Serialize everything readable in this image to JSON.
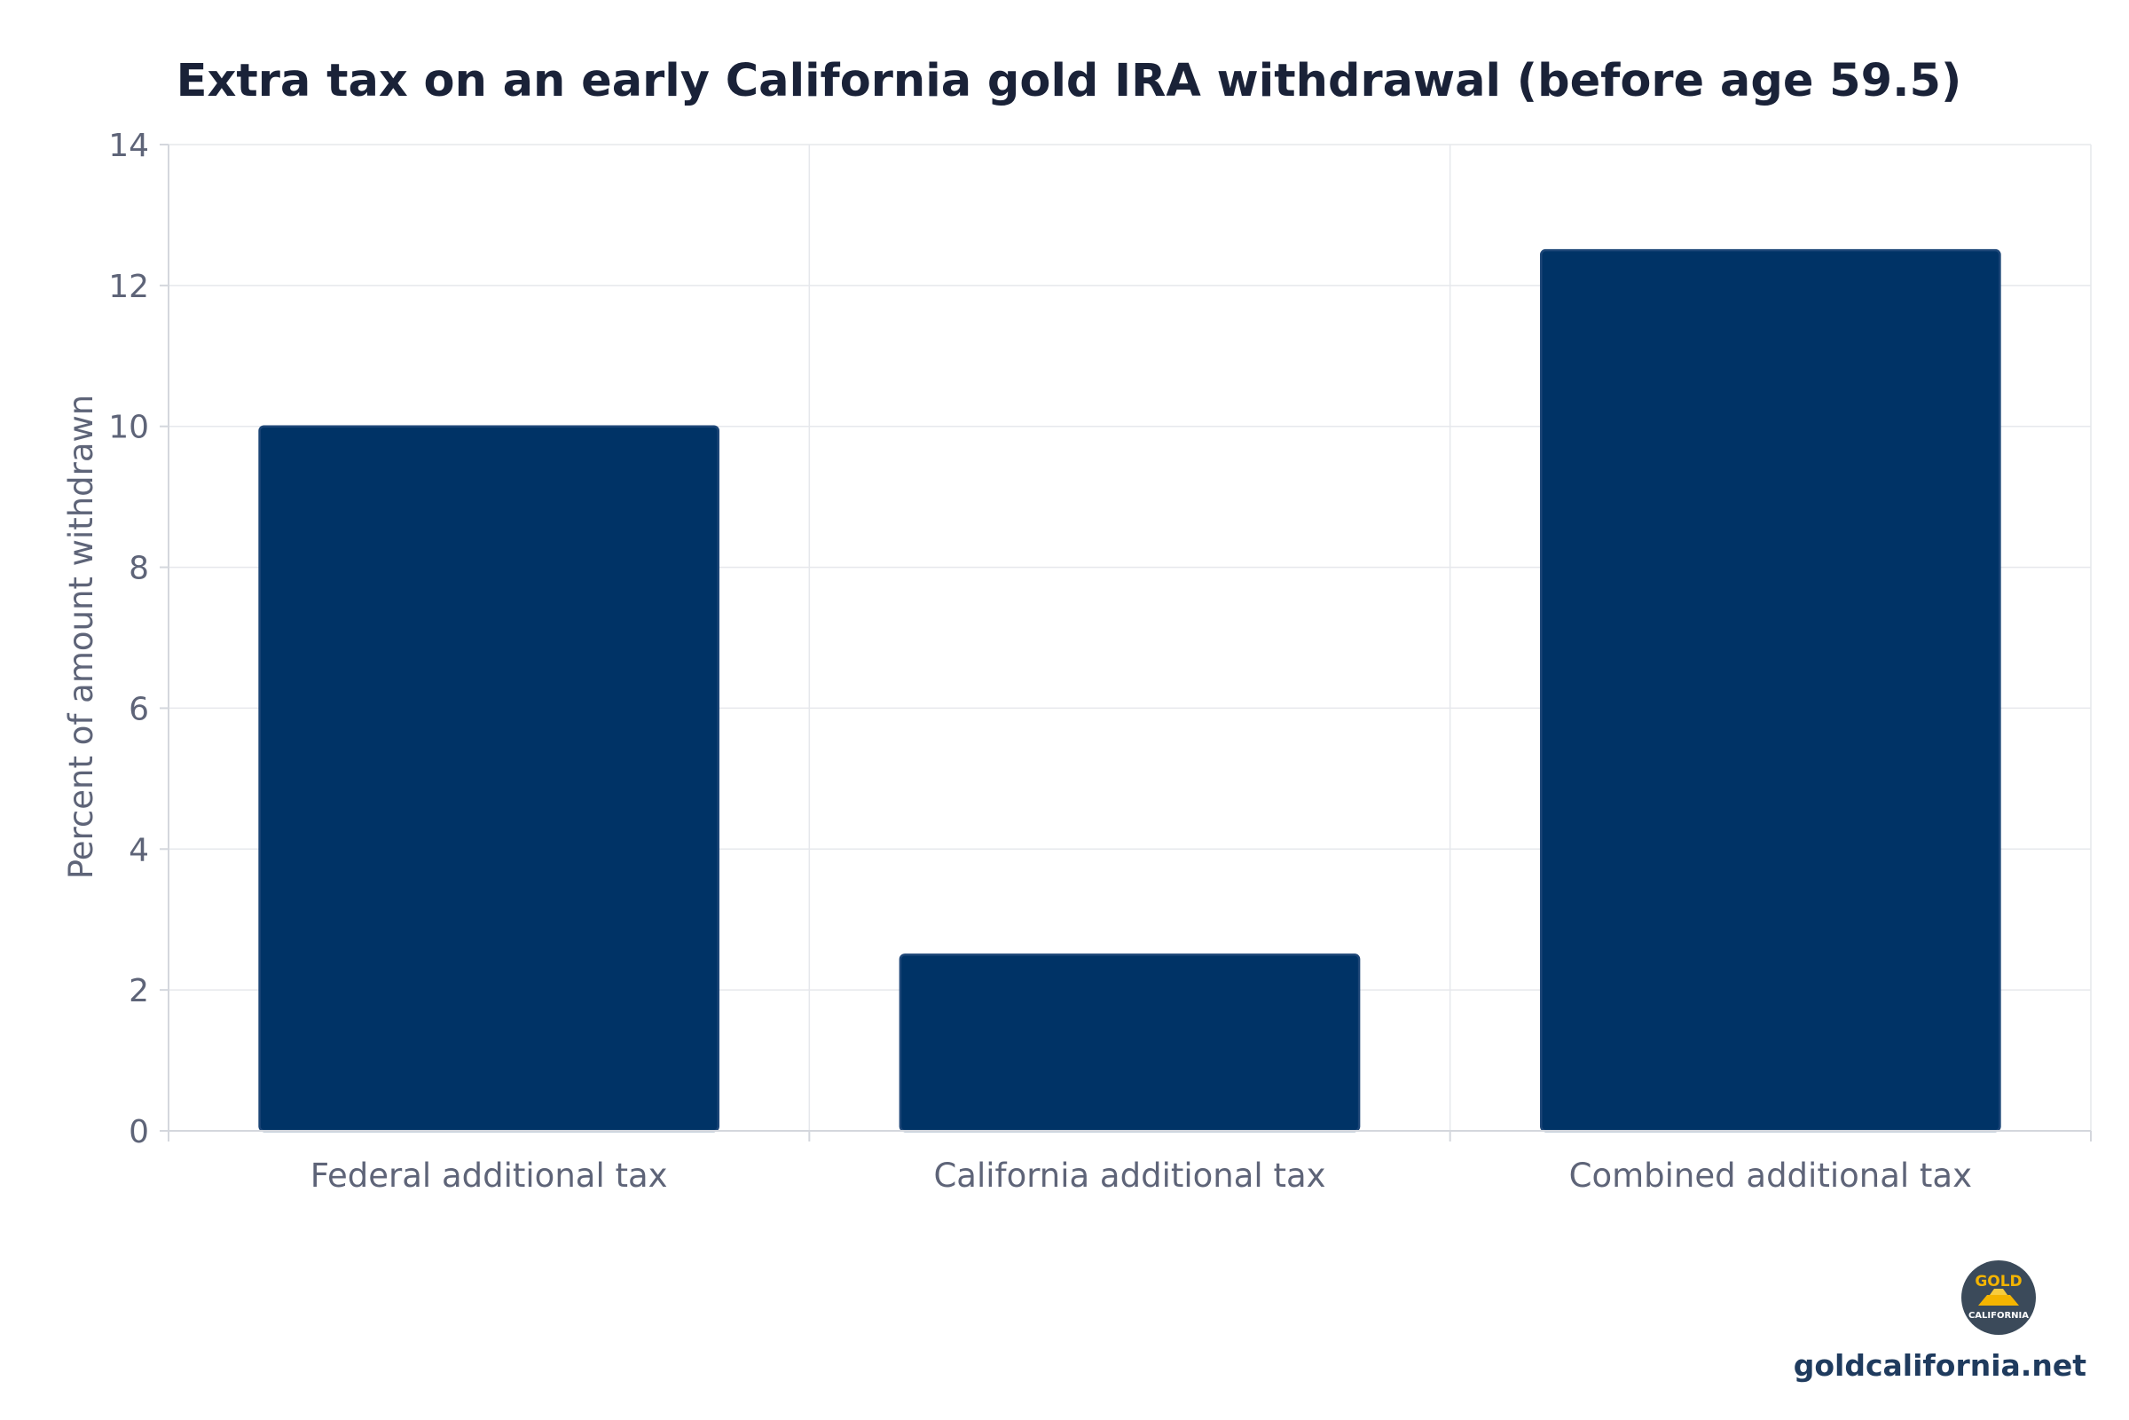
{
  "chart_data": {
    "type": "bar",
    "title": "Extra tax on an early California gold IRA withdrawal (before age 59.5)",
    "xlabel": "",
    "ylabel": "Percent of amount withdrawn",
    "categories": [
      "Federal additional tax",
      "California additional tax",
      "Combined additional tax"
    ],
    "values": [
      10,
      2.5,
      12.5
    ],
    "ylim": [
      0,
      14
    ],
    "yticks": [
      0,
      2,
      4,
      6,
      8,
      10,
      12,
      14
    ],
    "bar_color": "#003366",
    "grid": true,
    "legend": "none"
  },
  "footer": {
    "logo_top": "GOLD",
    "logo_bottom": "CALIFORNIA",
    "site": "goldcalifornia.net"
  }
}
